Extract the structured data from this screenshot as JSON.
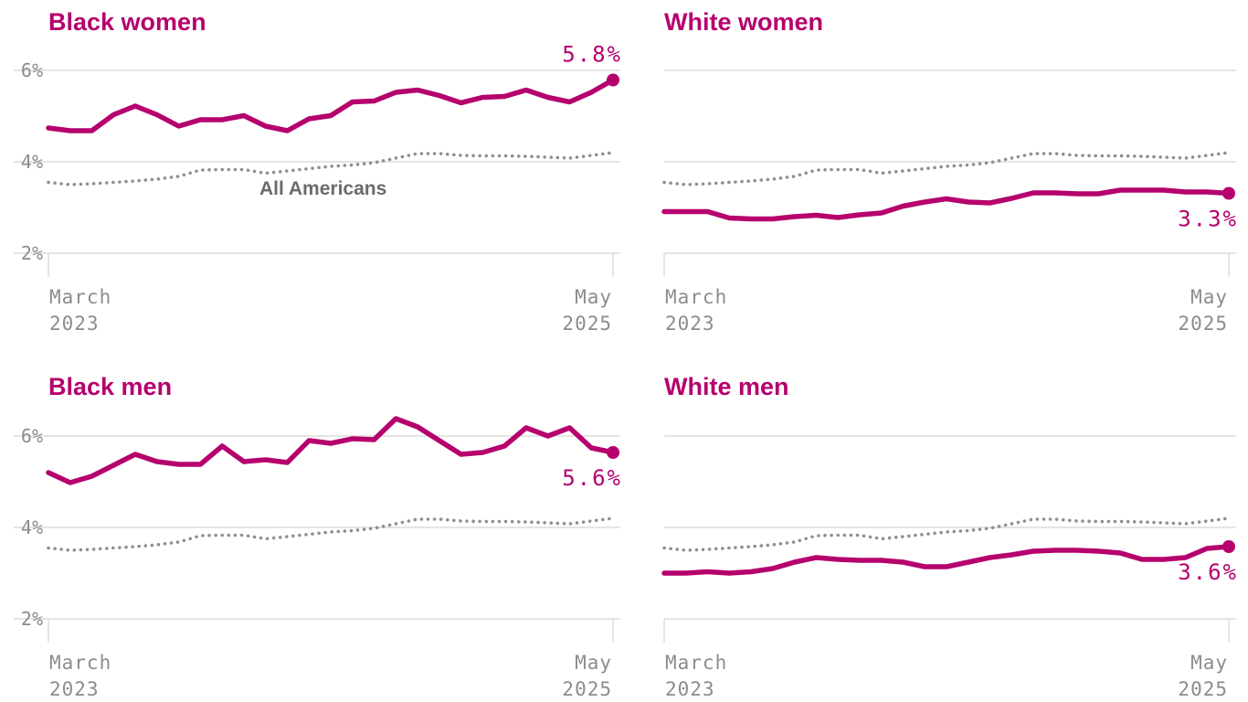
{
  "colors": {
    "accent": "#b5006d",
    "reference": "#8f8f8f",
    "grid": "#dcdcdc",
    "axis_text": "#8c8c8c"
  },
  "chart_data": [
    {
      "type": "line",
      "title": "Black women",
      "ylim": [
        2,
        6
      ],
      "yticks": [
        2,
        4,
        6
      ],
      "ytick_labels": [
        "2%",
        "4%",
        "6%"
      ],
      "x_start_label": [
        "March",
        "2023"
      ],
      "x_end_label": [
        "May",
        "2025"
      ],
      "end_label": "5.8%",
      "ref_label": "All Americans",
      "series": [
        {
          "name": "Black women",
          "values": [
            4.74,
            4.68,
            4.68,
            5.03,
            5.22,
            5.03,
            4.78,
            4.92,
            4.92,
            5.01,
            4.78,
            4.68,
            4.94,
            5.01,
            5.31,
            5.33,
            5.52,
            5.57,
            5.45,
            5.29,
            5.41,
            5.43,
            5.57,
            5.41,
            5.31,
            5.52,
            5.79
          ]
        },
        {
          "name": "All Americans",
          "values": [
            3.55,
            3.5,
            3.52,
            3.55,
            3.58,
            3.62,
            3.68,
            3.82,
            3.83,
            3.83,
            3.75,
            3.8,
            3.85,
            3.9,
            3.93,
            3.98,
            4.08,
            4.18,
            4.18,
            4.14,
            4.13,
            4.13,
            4.12,
            4.1,
            4.08,
            4.14,
            4.2
          ]
        }
      ]
    },
    {
      "type": "line",
      "title": "White women",
      "ylim": [
        2,
        6
      ],
      "yticks": [
        2,
        4,
        6
      ],
      "ytick_labels": [
        "",
        "",
        ""
      ],
      "x_start_label": [
        "March",
        "2023"
      ],
      "x_end_label": [
        "May",
        "2025"
      ],
      "end_label": "3.3%",
      "series": [
        {
          "name": "White women",
          "values": [
            2.91,
            2.91,
            2.91,
            2.77,
            2.75,
            2.75,
            2.8,
            2.83,
            2.78,
            2.84,
            2.88,
            3.03,
            3.12,
            3.19,
            3.12,
            3.1,
            3.2,
            3.32,
            3.32,
            3.3,
            3.3,
            3.38,
            3.38,
            3.38,
            3.34,
            3.34,
            3.31
          ]
        },
        {
          "name": "All Americans",
          "values": [
            3.55,
            3.5,
            3.52,
            3.55,
            3.58,
            3.62,
            3.68,
            3.82,
            3.83,
            3.83,
            3.75,
            3.8,
            3.85,
            3.9,
            3.93,
            3.98,
            4.08,
            4.18,
            4.18,
            4.14,
            4.13,
            4.13,
            4.12,
            4.1,
            4.08,
            4.14,
            4.2
          ]
        }
      ]
    },
    {
      "type": "line",
      "title": "Black men",
      "ylim": [
        2,
        6
      ],
      "yticks": [
        2,
        4,
        6
      ],
      "ytick_labels": [
        "2%",
        "4%",
        "6%"
      ],
      "x_start_label": [
        "March",
        "2023"
      ],
      "x_end_label": [
        "May",
        "2025"
      ],
      "end_label": "5.6%",
      "series": [
        {
          "name": "Black men",
          "values": [
            5.2,
            4.98,
            5.12,
            5.36,
            5.6,
            5.44,
            5.38,
            5.38,
            5.78,
            5.44,
            5.48,
            5.42,
            5.9,
            5.84,
            5.94,
            5.92,
            6.38,
            6.2,
            5.9,
            5.6,
            5.64,
            5.78,
            6.18,
            6.0,
            6.18,
            5.74,
            5.64
          ]
        },
        {
          "name": "All Americans",
          "values": [
            3.55,
            3.5,
            3.52,
            3.55,
            3.58,
            3.62,
            3.68,
            3.82,
            3.83,
            3.83,
            3.75,
            3.8,
            3.85,
            3.9,
            3.93,
            3.98,
            4.08,
            4.18,
            4.18,
            4.14,
            4.13,
            4.13,
            4.12,
            4.1,
            4.08,
            4.14,
            4.2
          ]
        }
      ]
    },
    {
      "type": "line",
      "title": "White men",
      "ylim": [
        2,
        6
      ],
      "yticks": [
        2,
        4,
        6
      ],
      "ytick_labels": [
        "",
        "",
        ""
      ],
      "x_start_label": [
        "March",
        "2023"
      ],
      "x_end_label": [
        "May",
        "2025"
      ],
      "end_label": "3.6%",
      "series": [
        {
          "name": "White men",
          "values": [
            3.0,
            3.0,
            3.03,
            3.0,
            3.03,
            3.1,
            3.24,
            3.34,
            3.3,
            3.28,
            3.28,
            3.24,
            3.14,
            3.14,
            3.24,
            3.34,
            3.4,
            3.48,
            3.5,
            3.5,
            3.48,
            3.44,
            3.3,
            3.3,
            3.34,
            3.54,
            3.58
          ]
        },
        {
          "name": "All Americans",
          "values": [
            3.55,
            3.5,
            3.52,
            3.55,
            3.58,
            3.62,
            3.68,
            3.82,
            3.83,
            3.83,
            3.75,
            3.8,
            3.85,
            3.9,
            3.93,
            3.98,
            4.08,
            4.18,
            4.18,
            4.14,
            4.13,
            4.13,
            4.12,
            4.1,
            4.08,
            4.14,
            4.2
          ]
        }
      ]
    }
  ]
}
